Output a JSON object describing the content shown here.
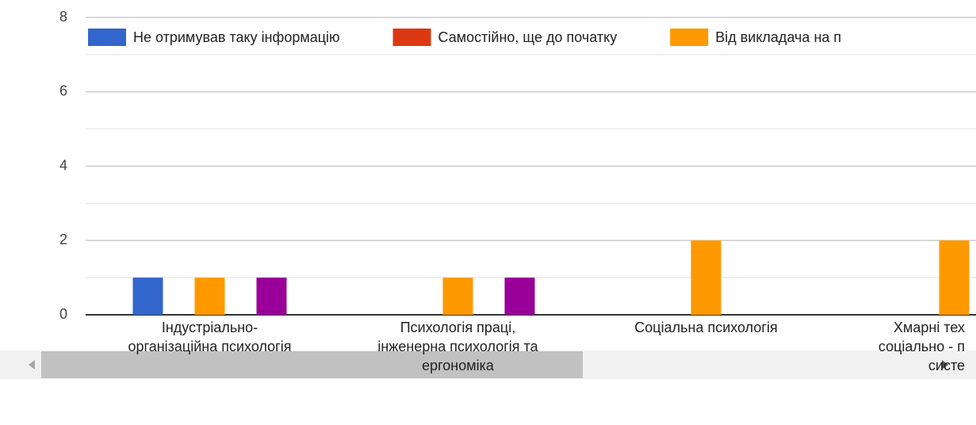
{
  "chart_data": {
    "type": "bar",
    "categories": [
      "Індустріально-\nорганізаційна психологія",
      "Психологія праці,\nінженерна психологія та\nергономіка",
      "Соціальна психологія",
      "Хмарні тех\nсоціально - п\nсисте"
    ],
    "series": [
      {
        "name": "Не отримував таку інформацію",
        "color": "#3366cc",
        "values": [
          1,
          0,
          0,
          0
        ]
      },
      {
        "name": "Самостійно, ще до початку",
        "color": "#dc3912",
        "values": [
          0,
          0,
          0,
          0
        ]
      },
      {
        "name": "Від викладача на п",
        "color": "#ff9900",
        "values": [
          1,
          1,
          2,
          2
        ]
      },
      {
        "color": "#109618",
        "values": [
          0,
          0,
          0,
          0
        ]
      },
      {
        "color": "#990099",
        "values": [
          1,
          1,
          0,
          0
        ]
      }
    ],
    "ylim": [
      0,
      8
    ],
    "yticks": [
      0,
      2,
      4,
      6,
      8
    ],
    "yminor": [
      1,
      3,
      5,
      7
    ],
    "grid": true,
    "legend": "top"
  }
}
